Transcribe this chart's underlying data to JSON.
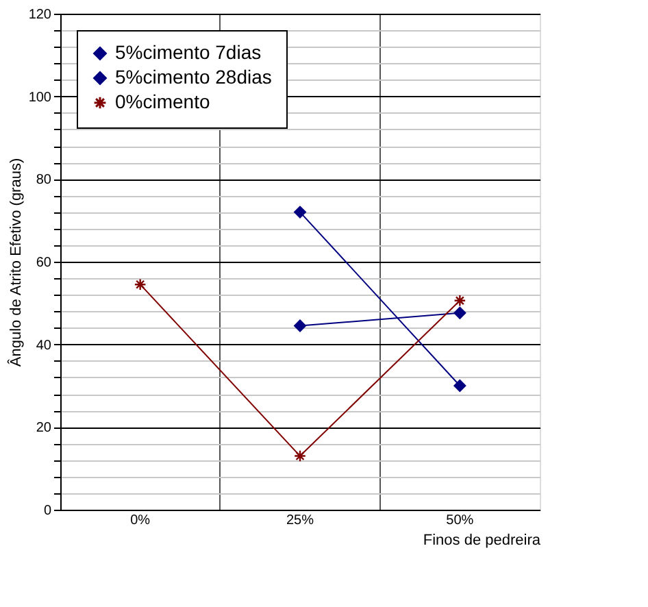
{
  "chart_data": {
    "type": "line",
    "xlabel": "Finos de pedreira",
    "ylabel": "Ângulo de Atrito Efetivo  (graus)",
    "categories": [
      "0%",
      "25%",
      "50%"
    ],
    "series": [
      {
        "name": "5%cimento 7dias",
        "color": "#000080",
        "marker": "diamond",
        "values": [
          null,
          44.5,
          47.6
        ]
      },
      {
        "name": "5%cimento 28dias",
        "color": "#000080",
        "marker": "diamond",
        "values": [
          null,
          72,
          30
        ]
      },
      {
        "name": "0%cimento",
        "color": "#800000",
        "marker": "cross",
        "values": [
          54.5,
          13,
          50.6
        ]
      }
    ],
    "ylim": [
      0,
      120
    ],
    "yticks": [
      0,
      {
        "value": 4,
        "label": null
      },
      {
        "value": 8,
        "label": null
      },
      {
        "value": 12,
        "label": null
      },
      {
        "value": 16,
        "label": null
      },
      20,
      {
        "value": 24,
        "label": null
      },
      {
        "value": 28,
        "label": null
      },
      {
        "value": 32,
        "label": null
      },
      {
        "value": 36,
        "label": null
      },
      40,
      {
        "value": 44,
        "label": null
      },
      {
        "value": 48,
        "label": null
      },
      {
        "value": 52,
        "label": null
      },
      {
        "value": 56,
        "label": null
      },
      60,
      {
        "value": 64,
        "label": null
      },
      {
        "value": 68,
        "label": null
      },
      {
        "value": 72,
        "label": null
      },
      {
        "value": 76,
        "label": null
      },
      80,
      {
        "value": 84,
        "label": null
      },
      {
        "value": 88,
        "label": null
      },
      {
        "value": 92,
        "label": null
      },
      {
        "value": 96,
        "label": null
      },
      100,
      {
        "value": 104,
        "label": null
      },
      {
        "value": 108,
        "label": null
      },
      {
        "value": 112,
        "label": null
      },
      {
        "value": 116,
        "label": null
      },
      120
    ],
    "grid": true,
    "legend": "top left",
    "line_style": "solid"
  }
}
